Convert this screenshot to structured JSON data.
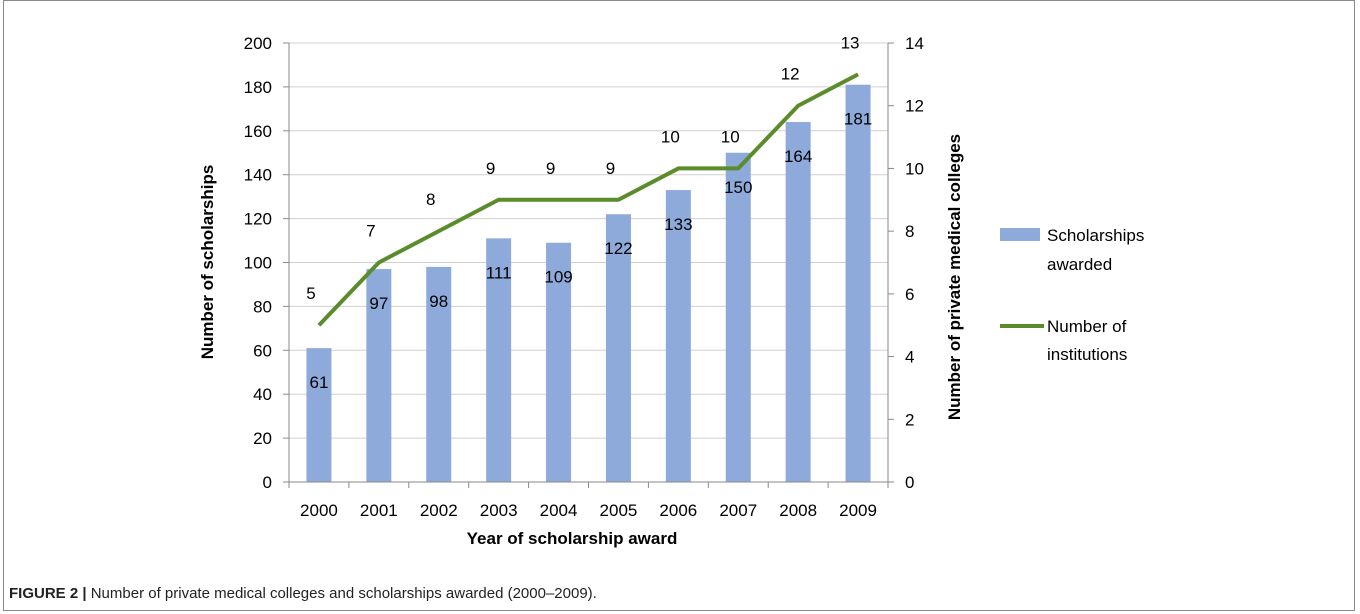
{
  "caption": {
    "lead": "FIGURE 2 |",
    "text": "Number of private medical colleges and scholarships awarded (2000–2009)."
  },
  "chart_data": {
    "type": "bar",
    "categories": [
      "2000",
      "2001",
      "2002",
      "2003",
      "2004",
      "2005",
      "2006",
      "2007",
      "2008",
      "2009"
    ],
    "series": [
      {
        "name": "Scholarships awarded",
        "legend_lines": [
          "Scholarships",
          "awarded"
        ],
        "type": "bar",
        "axis": "left",
        "color": "#8eaadb",
        "values": [
          61,
          97,
          98,
          111,
          109,
          122,
          133,
          150,
          164,
          181
        ]
      },
      {
        "name": "Number of institutions",
        "legend_lines": [
          "Number of",
          "institutions"
        ],
        "type": "line",
        "axis": "right",
        "color": "#5a8c2b",
        "values": [
          5,
          7,
          8,
          9,
          9,
          9,
          10,
          10,
          12,
          13
        ]
      }
    ],
    "xlabel": "Year of scholarship award",
    "ylabel": "Number of scholarships",
    "y2label": "Number of private medical colleges",
    "ylim": [
      0,
      200
    ],
    "y2lim": [
      0,
      14
    ],
    "yticks": [
      "0",
      "20",
      "40",
      "60",
      "80",
      "100",
      "120",
      "140",
      "160",
      "180",
      "200"
    ],
    "y2ticks": [
      "0",
      "2",
      "4",
      "6",
      "8",
      "10",
      "12",
      "14"
    ],
    "grid": true,
    "legend_position": "right"
  }
}
